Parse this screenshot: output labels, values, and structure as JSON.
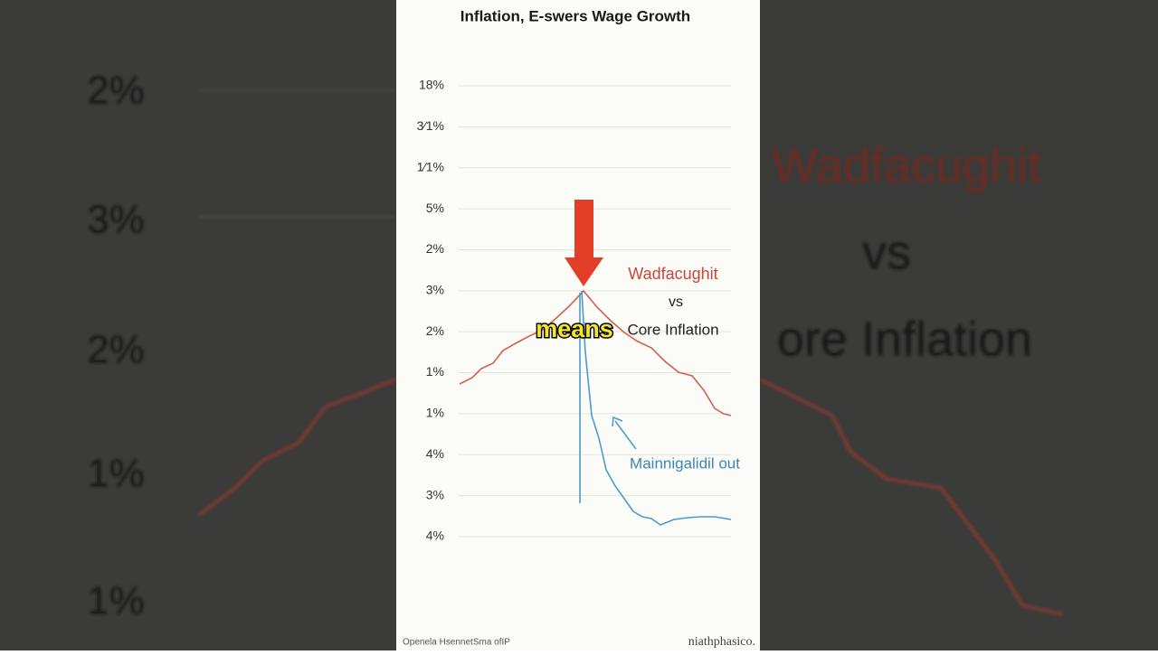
{
  "background": {
    "left_labels": [
      "2%",
      "3%",
      "2%",
      "1%",
      "1%"
    ],
    "right_labels": [
      "Wadfacughit",
      "vs",
      "ore Inflation"
    ]
  },
  "panel": {
    "title": "Inflation, E-swers Wage Growth",
    "axis_labels": [
      "18%",
      "3⁄1%",
      "1⁄1%",
      "5%",
      "2%",
      "3%",
      "2%",
      "1%",
      "1%",
      "4%",
      "3%",
      "4%"
    ],
    "legend": {
      "first": "Wadfacughit",
      "vs": "vs",
      "second": "Core Inflation"
    },
    "annotation": "Mainnigalidil out",
    "footer_left": "Openela HsennetSma ofIP",
    "footer_right": "niathphasico."
  },
  "caption": "means"
}
